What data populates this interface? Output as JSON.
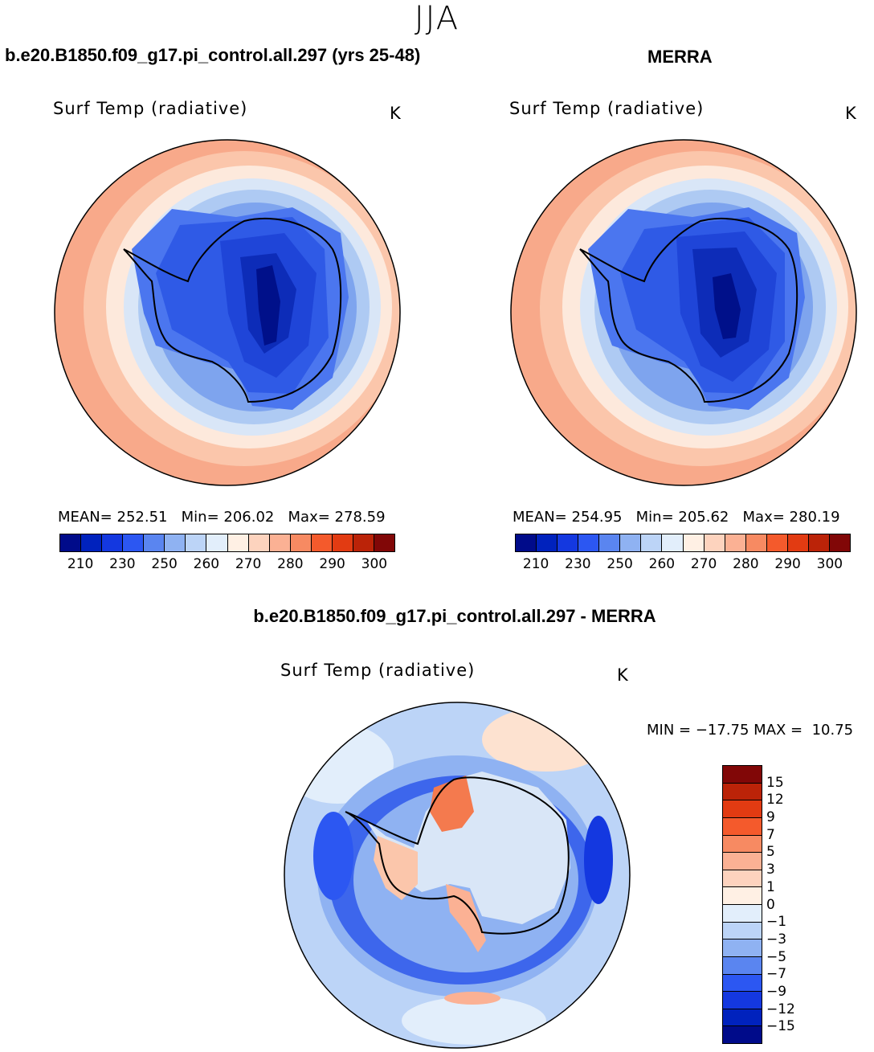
{
  "header": {
    "season": "JJA"
  },
  "panels": [
    {
      "title": "b.e20.B1850.f09_g17.pi_control.all.297 (yrs 25-48)",
      "variable": "Surf Temp (radiative)",
      "unit": "K",
      "stats": "MEAN= 252.51   Min= 206.02   Max= 278.59"
    },
    {
      "title": "MERRA",
      "variable": "Surf Temp (radiative)",
      "unit": "K",
      "stats": "MEAN= 254.95   Min= 205.62   Max= 280.19"
    }
  ],
  "diff_panel": {
    "title": "b.e20.B1850.f09_g17.pi_control.all.297 - MERRA",
    "variable": "Surf Temp (radiative)",
    "unit": "K",
    "minmax": "MIN = −17.75 MAX =  10.75"
  },
  "colorbar_abs": {
    "colors": [
      "#000b8a",
      "#0022bd",
      "#1438e0",
      "#2c57f2",
      "#5a85f0",
      "#8fb2f2",
      "#bcd4f7",
      "#e2eefb",
      "#fff0e4",
      "#fdd3be",
      "#fbb194",
      "#f78a62",
      "#f45a2c",
      "#e23b12",
      "#bb2308",
      "#810707"
    ],
    "ticks": [
      "210",
      "230",
      "250",
      "260",
      "270",
      "280",
      "290",
      "300"
    ]
  },
  "colorbar_diff": {
    "colors": [
      "#810707",
      "#bb2308",
      "#e23b12",
      "#f45a2c",
      "#f78a62",
      "#fbb194",
      "#fdd3be",
      "#fff0e4",
      "#e2eefb",
      "#bcd4f7",
      "#8fb2f2",
      "#5a85f0",
      "#2c57f2",
      "#1438e0",
      "#0022bd",
      "#000b8a"
    ],
    "ticks": [
      "15",
      "12",
      "9",
      "7",
      "5",
      "3",
      "1",
      "0",
      "−1",
      "−3",
      "−5",
      "−7",
      "−9",
      "−12",
      "−15"
    ]
  }
}
